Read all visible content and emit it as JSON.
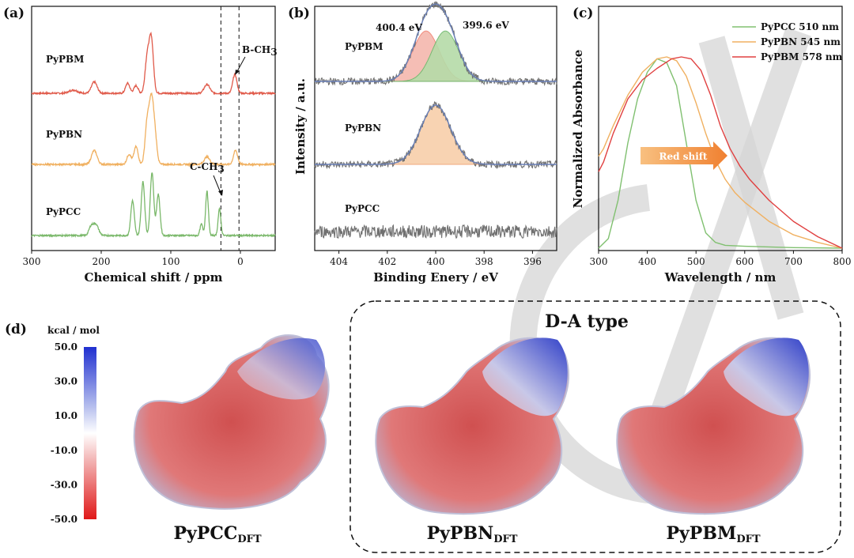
{
  "chart_data": [
    {
      "panel": "(a)",
      "type": "line",
      "xlabel": "Chemical shift / ppm",
      "xlim": [
        300,
        -50
      ],
      "xticks": [
        300,
        200,
        100,
        0
      ],
      "series": [
        {
          "name": "PyPBM",
          "color": "#e05a4a",
          "peaks": [
            [
              128,
              0.85,
              3
            ],
            [
              134,
              0.55,
              3
            ],
            [
              210,
              0.18,
              4
            ],
            [
              162,
              0.16,
              3
            ],
            [
              150,
              0.12,
              3
            ],
            [
              48,
              0.14,
              4
            ],
            [
              8,
              0.3,
              3
            ],
            [
              240,
              0.05,
              6
            ]
          ]
        },
        {
          "name": "PyPBN",
          "color": "#f0b060",
          "peaks": [
            [
              128,
              0.92,
              3
            ],
            [
              134,
              0.65,
              3
            ],
            [
              123,
              0.45,
              3
            ],
            [
              210,
              0.22,
              4
            ],
            [
              160,
              0.16,
              3
            ],
            [
              150,
              0.28,
              3
            ],
            [
              48,
              0.12,
              4
            ],
            [
              7,
              0.22,
              3
            ]
          ]
        },
        {
          "name": "PyPCC",
          "color": "#7ab86a",
          "peaks": [
            [
              140,
              0.85,
              2.5
            ],
            [
              127,
              1.0,
              2.5
            ],
            [
              118,
              0.65,
              2.5
            ],
            [
              155,
              0.55,
              2.5
            ],
            [
              208,
              0.18,
              4
            ],
            [
              215,
              0.12,
              3
            ],
            [
              48,
              0.7,
              2
            ],
            [
              30,
              0.42,
              2
            ],
            [
              56,
              0.18,
              2
            ]
          ]
        }
      ],
      "annotations": [
        {
          "text": "B-CH",
          "sub": "3",
          "ppm": 8
        },
        {
          "text": "C-CH",
          "sub": "3",
          "ppm": 28
        }
      ],
      "dashed_lines_ppm": [
        28,
        2
      ]
    },
    {
      "panel": "(b)",
      "type": "line",
      "xlabel": "Binding Enery / eV",
      "ylabel": "Intensity / a.u.",
      "xlim": [
        405,
        395
      ],
      "xticks": [
        404,
        402,
        400,
        398,
        396
      ],
      "series": [
        {
          "name": "PyPBM",
          "components": [
            {
              "center": 400.4,
              "height": 0.85,
              "width": 0.55,
              "color": "#f08070",
              "fill": "#f5b7ae"
            },
            {
              "center": 399.6,
              "height": 0.85,
              "width": 0.55,
              "color": "#6ab86a",
              "fill": "#b5dba8"
            }
          ]
        },
        {
          "name": "PyPBN",
          "components": [
            {
              "center": 400.0,
              "height": 1.0,
              "width": 0.62,
              "color": "#f0a070",
              "fill": "#f8cfaa"
            }
          ]
        },
        {
          "name": "PyPCC",
          "components": []
        }
      ],
      "annotations": [
        "400.4 eV",
        "399.6 eV"
      ]
    },
    {
      "panel": "(c)",
      "type": "line",
      "xlabel": "Wavelength / nm",
      "ylabel": "Normalized Absorbance",
      "xlim": [
        300,
        800
      ],
      "xticks": [
        300,
        400,
        500,
        600,
        700,
        800
      ],
      "series": [
        {
          "name": "PyPCC  510 nm",
          "color": "#80c070",
          "x": [
            300,
            320,
            340,
            360,
            380,
            400,
            420,
            440,
            460,
            480,
            500,
            520,
            540,
            560,
            600,
            700,
            800
          ],
          "y": [
            0.0,
            0.05,
            0.25,
            0.55,
            0.78,
            0.92,
            0.99,
            0.97,
            0.85,
            0.55,
            0.25,
            0.08,
            0.03,
            0.015,
            0.01,
            0.003,
            0.0
          ]
        },
        {
          "name": "PyPBN  545 nm",
          "color": "#f0b060",
          "x": [
            300,
            310,
            330,
            360,
            390,
            420,
            440,
            460,
            480,
            500,
            520,
            540,
            560,
            580,
            600,
            650,
            700,
            750,
            800
          ],
          "y": [
            0.48,
            0.52,
            0.64,
            0.8,
            0.92,
            0.99,
            1.0,
            0.98,
            0.9,
            0.76,
            0.6,
            0.46,
            0.36,
            0.29,
            0.24,
            0.14,
            0.07,
            0.03,
            0.0
          ]
        },
        {
          "name": "PyPBM 578 nm",
          "color": "#e04040",
          "x": [
            300,
            310,
            330,
            360,
            390,
            420,
            450,
            470,
            490,
            510,
            530,
            550,
            570,
            590,
            610,
            650,
            700,
            750,
            800
          ],
          "y": [
            0.4,
            0.45,
            0.6,
            0.78,
            0.88,
            0.94,
            0.99,
            1.0,
            0.99,
            0.93,
            0.8,
            0.64,
            0.52,
            0.43,
            0.36,
            0.25,
            0.14,
            0.06,
            0.0
          ]
        }
      ],
      "arrow_label": "Red shift"
    },
    {
      "panel": "(d)",
      "type": "heatmap",
      "colorbar_title": "kcal / mol",
      "colorbar_ticks": [
        "50.0",
        "30.0",
        "10.0",
        "-10.0",
        "-30.0",
        "-50.0"
      ],
      "group_label": "D-A type",
      "molecules": [
        {
          "name": "PyPCC",
          "sub": "DFT"
        },
        {
          "name": "PyPBN",
          "sub": "DFT"
        },
        {
          "name": "PyPBM",
          "sub": "DFT"
        }
      ]
    }
  ]
}
